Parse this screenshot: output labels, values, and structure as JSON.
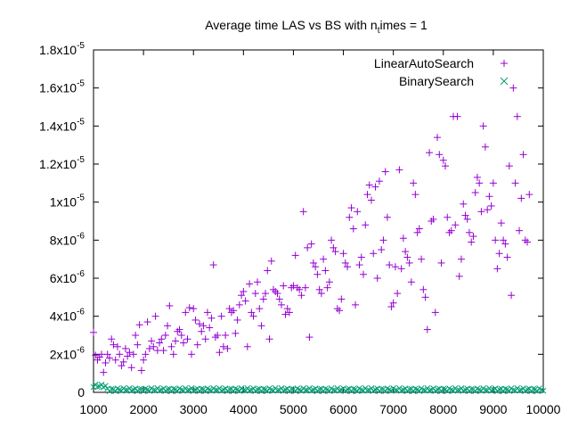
{
  "chart_data": {
    "type": "scatter",
    "title": "Average time LAS vs BS with n",
    "title_subscript": "t",
    "title_suffix": "imes = 1",
    "xlabel": "",
    "ylabel": "",
    "xlim": [
      1000,
      10000
    ],
    "ylim": [
      0,
      1.8e-05
    ],
    "x_ticks": [
      1000,
      2000,
      3000,
      4000,
      5000,
      6000,
      7000,
      8000,
      9000,
      10000
    ],
    "x_tick_labels": [
      "1000",
      "2000",
      "3000",
      "4000",
      "5000",
      "6000",
      "7000",
      "8000",
      "9000",
      "10000"
    ],
    "y_ticks": [
      {
        "value": 0,
        "mantissa": "0",
        "exponent": ""
      },
      {
        "value": 2e-06,
        "mantissa": "2x10",
        "exponent": "-6"
      },
      {
        "value": 4e-06,
        "mantissa": "4x10",
        "exponent": "-6"
      },
      {
        "value": 6e-06,
        "mantissa": "6x10",
        "exponent": "-6"
      },
      {
        "value": 8e-06,
        "mantissa": "8x10",
        "exponent": "-6"
      },
      {
        "value": 1e-05,
        "mantissa": "1x10",
        "exponent": "-5"
      },
      {
        "value": 1.2e-05,
        "mantissa": "1.2x10",
        "exponent": "-5"
      },
      {
        "value": 1.4e-05,
        "mantissa": "1.4x10",
        "exponent": "-5"
      },
      {
        "value": 1.6e-05,
        "mantissa": "1.6x10",
        "exponent": "-5"
      },
      {
        "value": 1.8e-05,
        "mantissa": "1.8x10",
        "exponent": "-5"
      }
    ],
    "legend_position": "top-right",
    "grid": false,
    "series": [
      {
        "name": "LinearAutoSearch",
        "marker": "plus",
        "color": "#9400d3",
        "points": [
          [
            1000,
            3.15e-06
          ],
          [
            1040,
            1.95e-06
          ],
          [
            1080,
            1.7e-06
          ],
          [
            1120,
            1.85e-06
          ],
          [
            1160,
            2e-06
          ],
          [
            1200,
            1.05e-06
          ],
          [
            1240,
            1.55e-06
          ],
          [
            1280,
            2e-06
          ],
          [
            1320,
            1.8e-06
          ],
          [
            1360,
            2.8e-06
          ],
          [
            1400,
            2.5e-06
          ],
          [
            1440,
            1.7e-06
          ],
          [
            1480,
            2.4e-06
          ],
          [
            1520,
            2e-06
          ],
          [
            1560,
            1.4e-06
          ],
          [
            1600,
            1.6e-06
          ],
          [
            1640,
            2.3e-06
          ],
          [
            1680,
            1.9e-06
          ],
          [
            1720,
            2.1e-06
          ],
          [
            1760,
            1.3e-06
          ],
          [
            1800,
            2e-06
          ],
          [
            1840,
            3e-06
          ],
          [
            1880,
            2.5e-06
          ],
          [
            1920,
            3.55e-06
          ],
          [
            1960,
            1.15e-06
          ],
          [
            2000,
            1.7e-06
          ],
          [
            2040,
            2e-06
          ],
          [
            2080,
            3.7e-06
          ],
          [
            2120,
            2.3e-06
          ],
          [
            2160,
            2.7e-06
          ],
          [
            2200,
            2.4e-06
          ],
          [
            2240,
            4e-06
          ],
          [
            2280,
            2.2e-06
          ],
          [
            2320,
            2.6e-06
          ],
          [
            2360,
            2.8e-06
          ],
          [
            2400,
            2.2e-06
          ],
          [
            2440,
            3e-06
          ],
          [
            2480,
            3.5e-06
          ],
          [
            2520,
            4.55e-06
          ],
          [
            2560,
            2.4e-06
          ],
          [
            2600,
            2e-06
          ],
          [
            2640,
            2.7e-06
          ],
          [
            2680,
            3.2e-06
          ],
          [
            2720,
            3.3e-06
          ],
          [
            2760,
            3e-06
          ],
          [
            2800,
            2.6e-06
          ],
          [
            2840,
            4.2e-06
          ],
          [
            2880,
            2.8e-06
          ],
          [
            2920,
            4.45e-06
          ],
          [
            2960,
            2e-06
          ],
          [
            3000,
            4.4e-06
          ],
          [
            3040,
            3.8e-06
          ],
          [
            3080,
            2.5e-06
          ],
          [
            3120,
            3.6e-06
          ],
          [
            3160,
            3.2e-06
          ],
          [
            3200,
            3.5e-06
          ],
          [
            3240,
            2.8e-06
          ],
          [
            3280,
            4.2e-06
          ],
          [
            3320,
            3.4e-06
          ],
          [
            3360,
            3.9e-06
          ],
          [
            3400,
            6.7e-06
          ],
          [
            3440,
            2.9e-06
          ],
          [
            3480,
            3e-06
          ],
          [
            3520,
            2.1e-06
          ],
          [
            3560,
            4e-06
          ],
          [
            3600,
            2.4e-06
          ],
          [
            3640,
            3e-06
          ],
          [
            3680,
            2.3e-06
          ],
          [
            3720,
            4.4e-06
          ],
          [
            3760,
            4.2e-06
          ],
          [
            3800,
            4.3e-06
          ],
          [
            3840,
            3.1e-06
          ],
          [
            3880,
            3.8e-06
          ],
          [
            3920,
            4.6e-06
          ],
          [
            3960,
            5.1e-06
          ],
          [
            4000,
            5.3e-06
          ],
          [
            4040,
            4.8e-06
          ],
          [
            4080,
            2.4e-06
          ],
          [
            4120,
            5.7e-06
          ],
          [
            4160,
            4.2e-06
          ],
          [
            4200,
            4e-06
          ],
          [
            4240,
            5.2e-06
          ],
          [
            4280,
            5.8e-06
          ],
          [
            4320,
            4.4e-06
          ],
          [
            4360,
            3.5e-06
          ],
          [
            4400,
            4.9e-06
          ],
          [
            4440,
            5.2e-06
          ],
          [
            4480,
            6.4e-06
          ],
          [
            4520,
            2.8e-06
          ],
          [
            4560,
            6.9e-06
          ],
          [
            4600,
            5.4e-06
          ],
          [
            4640,
            5.3e-06
          ],
          [
            4680,
            5.2e-06
          ],
          [
            4720,
            4.9e-06
          ],
          [
            4760,
            4.6e-06
          ],
          [
            4800,
            5.6e-06
          ],
          [
            4840,
            4.1e-06
          ],
          [
            4880,
            4.4e-06
          ],
          [
            4920,
            4.2e-06
          ],
          [
            4960,
            5.5e-06
          ],
          [
            5000,
            5.6e-06
          ],
          [
            5040,
            7.2e-06
          ],
          [
            5080,
            5.5e-06
          ],
          [
            5120,
            5.4e-06
          ],
          [
            5160,
            5.1e-06
          ],
          [
            5200,
            9.5e-06
          ],
          [
            5240,
            5.5e-06
          ],
          [
            5280,
            7.6e-06
          ],
          [
            5320,
            2.9e-06
          ],
          [
            5360,
            7.8e-06
          ],
          [
            5400,
            6.8e-06
          ],
          [
            5440,
            6.6e-06
          ],
          [
            5480,
            6.2e-06
          ],
          [
            5520,
            5.4e-06
          ],
          [
            5560,
            5.2e-06
          ],
          [
            5600,
            7e-06
          ],
          [
            5640,
            6.4e-06
          ],
          [
            5680,
            5.5e-06
          ],
          [
            5720,
            5.8e-06
          ],
          [
            5760,
            8e-06
          ],
          [
            5800,
            7.6e-06
          ],
          [
            5840,
            7.4e-06
          ],
          [
            5880,
            4.4e-06
          ],
          [
            5920,
            4.3e-06
          ],
          [
            5960,
            4.9e-06
          ],
          [
            6000,
            7.3e-06
          ],
          [
            6040,
            6.8e-06
          ],
          [
            6080,
            6.6e-06
          ],
          [
            6120,
            9.2e-06
          ],
          [
            6160,
            9.7e-06
          ],
          [
            6200,
            8.6e-06
          ],
          [
            6240,
            4.6e-06
          ],
          [
            6280,
            9.5e-06
          ],
          [
            6320,
            6.7e-06
          ],
          [
            6360,
            7.1e-06
          ],
          [
            6400,
            6.2e-06
          ],
          [
            6440,
            8.8e-06
          ],
          [
            6480,
            1.04e-05
          ],
          [
            6520,
            1.09e-05
          ],
          [
            6560,
            1.01e-05
          ],
          [
            6600,
            7.3e-06
          ],
          [
            6640,
            1.08e-05
          ],
          [
            6680,
            6e-06
          ],
          [
            6720,
            1.11e-05
          ],
          [
            6760,
            7.5e-06
          ],
          [
            6800,
            8e-06
          ],
          [
            6840,
            1.16e-05
          ],
          [
            6880,
            9.2e-06
          ],
          [
            6920,
            6.7e-06
          ],
          [
            6960,
            4.5e-06
          ],
          [
            7000,
            4.7e-06
          ],
          [
            7040,
            6.6e-06
          ],
          [
            7080,
            5.2e-06
          ],
          [
            7120,
            1.17e-05
          ],
          [
            7160,
            6.5e-06
          ],
          [
            7200,
            8.1e-06
          ],
          [
            7240,
            7.4e-06
          ],
          [
            7280,
            7.1e-06
          ],
          [
            7320,
            6.8e-06
          ],
          [
            7360,
            5.8e-06
          ],
          [
            7400,
            1.1e-05
          ],
          [
            7440,
            1.04e-05
          ],
          [
            7480,
            8.4e-06
          ],
          [
            7520,
            8.6e-06
          ],
          [
            7560,
            7e-06
          ],
          [
            7600,
            5.4e-06
          ],
          [
            7640,
            5e-06
          ],
          [
            7680,
            3.3e-06
          ],
          [
            7720,
            1.26e-05
          ],
          [
            7760,
            9e-06
          ],
          [
            7800,
            9.1e-06
          ],
          [
            7840,
            4.2e-06
          ],
          [
            7880,
            1.34e-05
          ],
          [
            7920,
            1.25e-05
          ],
          [
            7960,
            6.8e-06
          ],
          [
            8000,
            1.22e-05
          ],
          [
            8040,
            1.19e-05
          ],
          [
            8080,
            9.2e-06
          ],
          [
            8120,
            8.4e-06
          ],
          [
            8160,
            8.5e-06
          ],
          [
            8200,
            1.45e-05
          ],
          [
            8240,
            8.8e-06
          ],
          [
            8280,
            1.45e-05
          ],
          [
            8320,
            6.1e-06
          ],
          [
            8360,
            7e-06
          ],
          [
            8400,
            9.9e-06
          ],
          [
            8440,
            9.3e-06
          ],
          [
            8480,
            9.1e-06
          ],
          [
            8520,
            8.4e-06
          ],
          [
            8560,
            7.9e-06
          ],
          [
            8600,
            8.2e-06
          ],
          [
            8640,
            1.05e-05
          ],
          [
            8680,
            1.13e-05
          ],
          [
            8720,
            1.1e-05
          ],
          [
            8760,
            9.5e-06
          ],
          [
            8800,
            1.4e-05
          ],
          [
            8840,
            1.29e-05
          ],
          [
            8880,
            9.6e-06
          ],
          [
            8920,
            1.03e-05
          ],
          [
            8960,
            9.8e-06
          ],
          [
            9000,
            1.1e-05
          ],
          [
            9040,
            8e-06
          ],
          [
            9080,
            6.5e-06
          ],
          [
            9120,
            7.3e-06
          ],
          [
            9160,
            8.9e-06
          ],
          [
            9200,
            8e-06
          ],
          [
            9240,
            7.8e-06
          ],
          [
            9280,
            7.1e-06
          ],
          [
            9320,
            1.19e-05
          ],
          [
            9360,
            5.1e-06
          ],
          [
            9400,
            1.6e-05
          ],
          [
            9440,
            1.1e-05
          ],
          [
            9480,
            1.45e-05
          ],
          [
            9520,
            8.5e-06
          ],
          [
            9560,
            1.02e-05
          ],
          [
            9600,
            1.25e-05
          ],
          [
            9640,
            8e-06
          ],
          [
            9680,
            7.9e-06
          ],
          [
            9720,
            1.04e-05
          ]
        ]
      },
      {
        "name": "BinarySearch",
        "marker": "x",
        "color": "#009e73",
        "points": "dense-baseline"
      }
    ]
  }
}
